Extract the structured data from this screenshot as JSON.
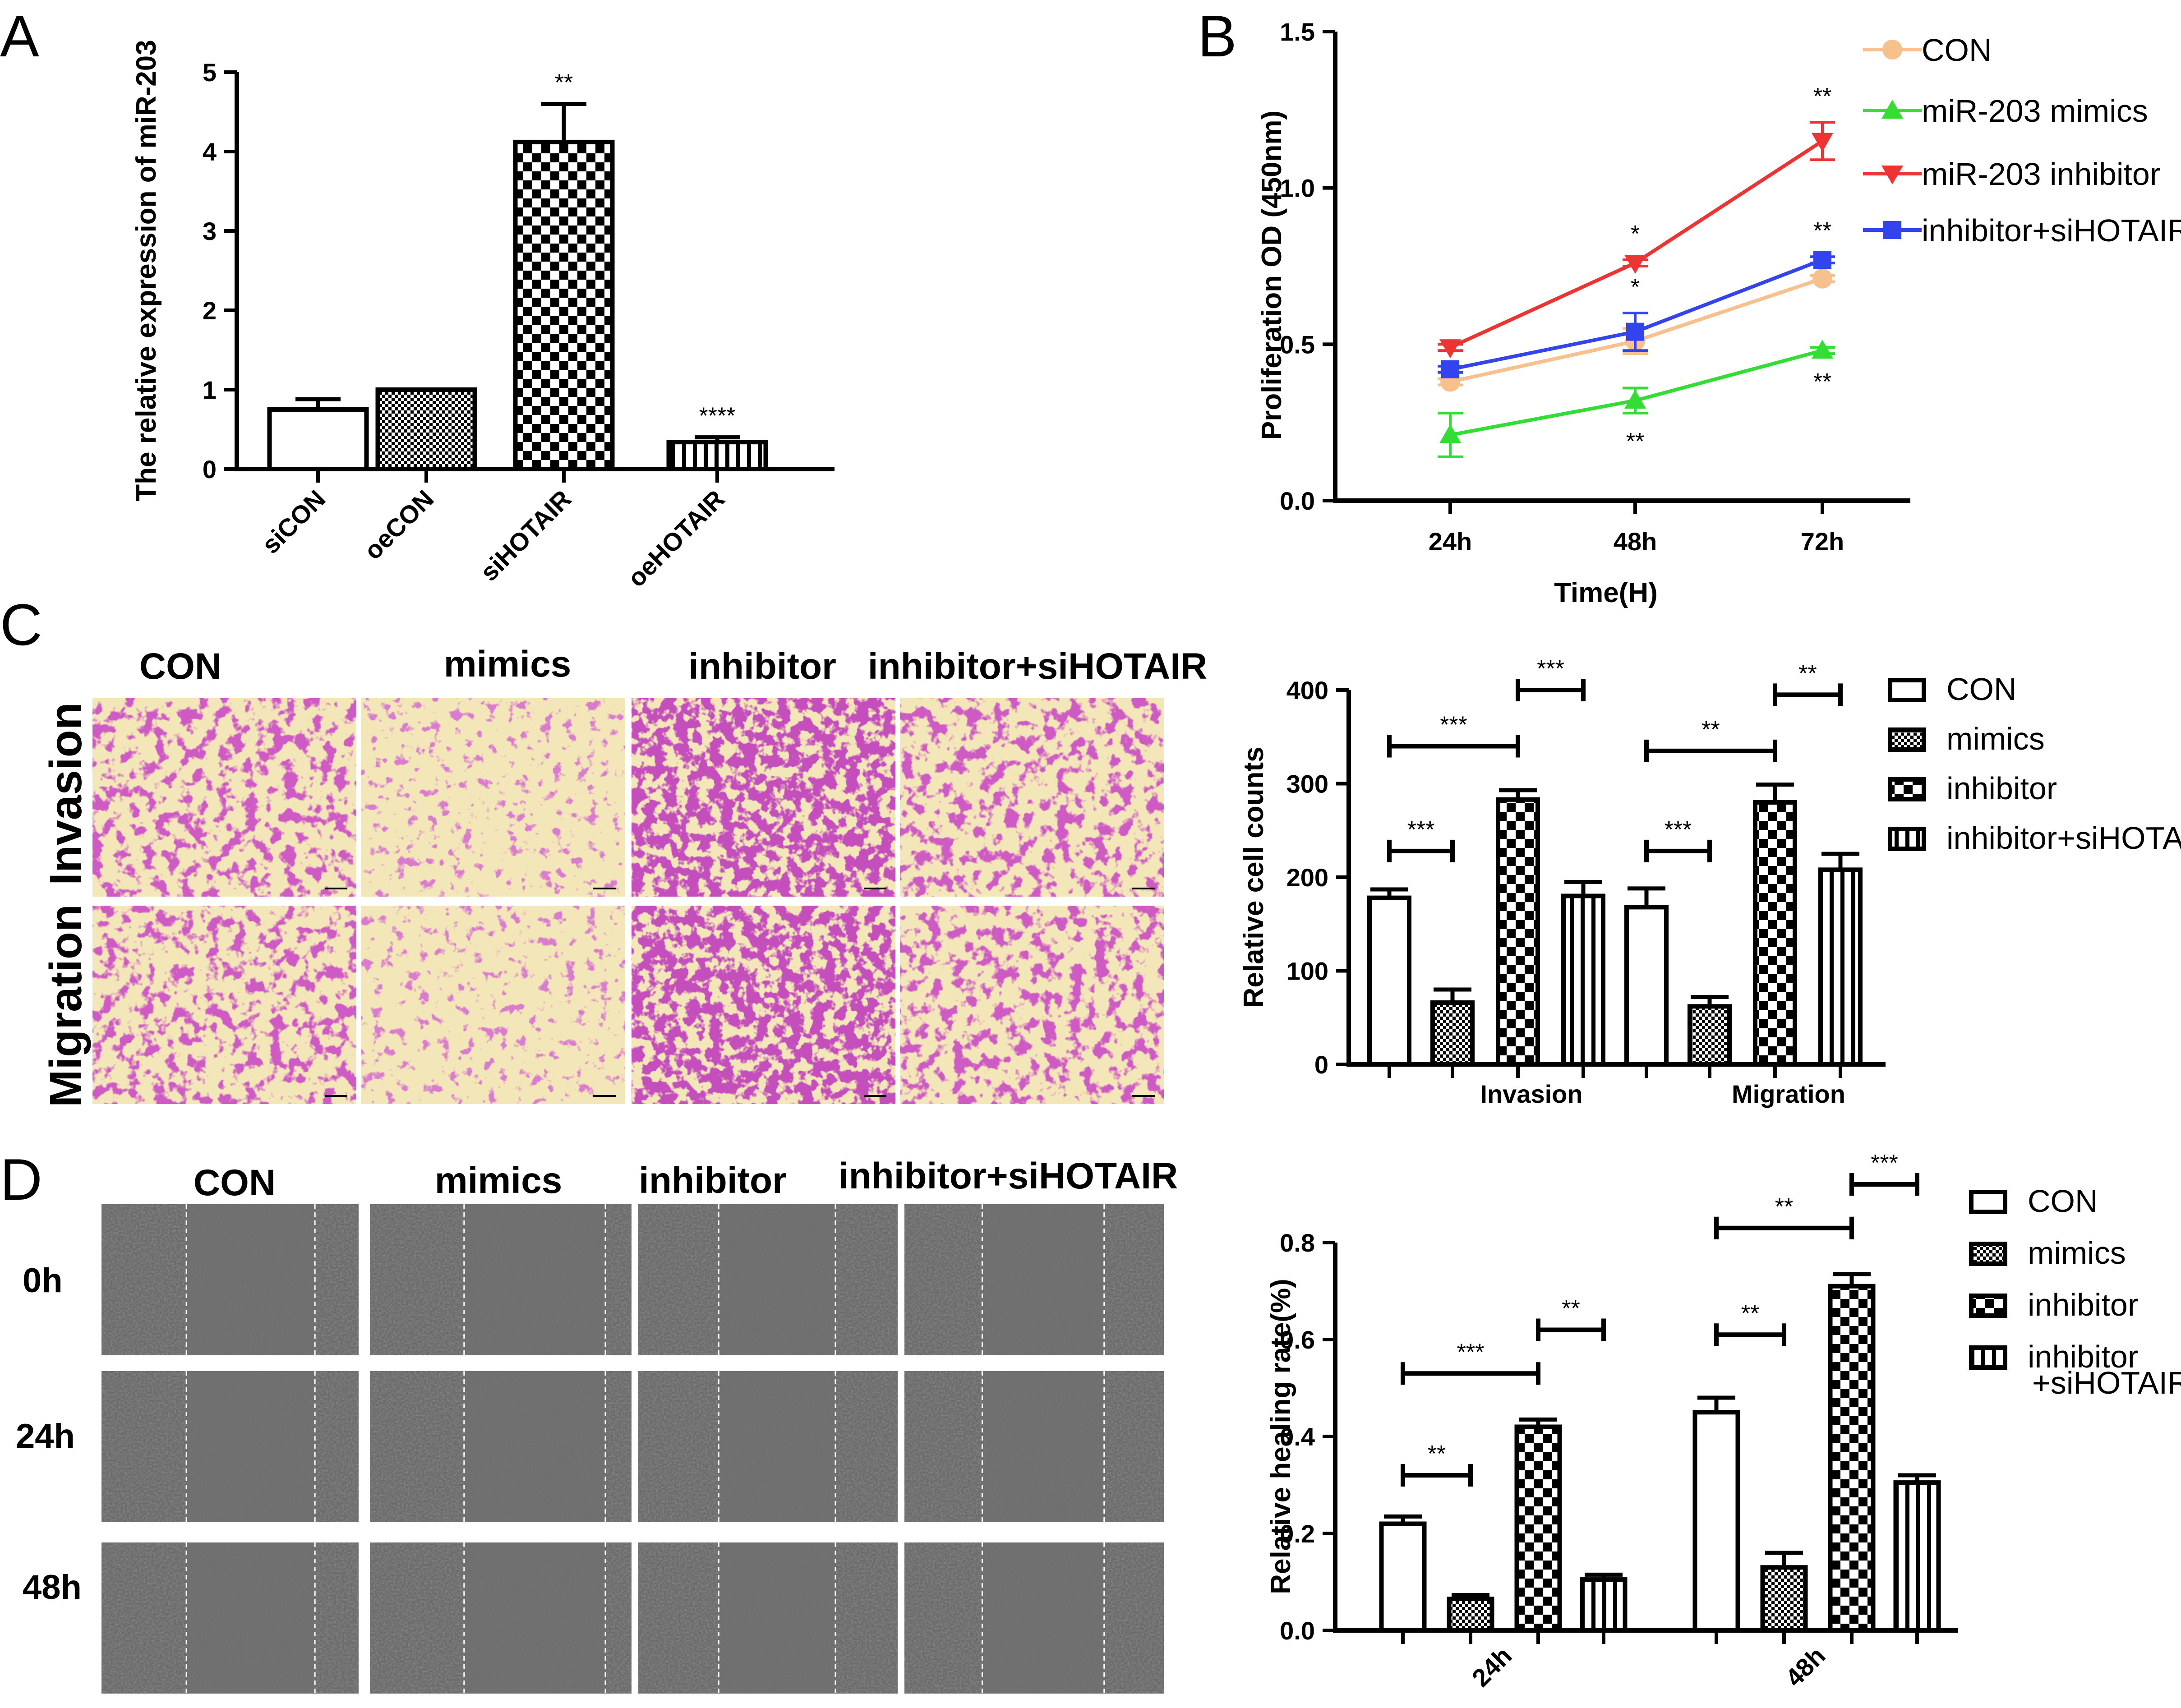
{
  "panel_letters": [
    "A",
    "B",
    "C",
    "D"
  ],
  "panel_c": {
    "col_headers": [
      "CON",
      "mimics",
      "inhibitor",
      "inhibitor+siHOTAIR"
    ],
    "row_labels": [
      "Invasion",
      "Migration"
    ]
  },
  "panel_d": {
    "col_headers": [
      "CON",
      "mimics",
      "inhibitor",
      "inhibitor+siHOTAIR"
    ],
    "row_labels": [
      "0h",
      "24h",
      "48h"
    ]
  },
  "chart_data": [
    {
      "id": "A",
      "type": "bar",
      "ylabel": "The relative expression of miR-203",
      "ylim": [
        0,
        5
      ],
      "yticks": [
        0,
        1,
        2,
        3,
        4,
        5
      ],
      "categories": [
        "siCON",
        "oeCON",
        "siHOTAIR",
        "oeHOTAIR"
      ],
      "values": [
        0.75,
        1.0,
        4.12,
        0.34
      ],
      "errors": [
        0.13,
        0.0,
        0.48,
        0.06
      ],
      "patterns": [
        "open",
        "fine-check",
        "checker",
        "vertical"
      ],
      "significance": [
        "",
        "",
        "**",
        "****"
      ]
    },
    {
      "id": "B",
      "type": "line",
      "xlabel": "Time(H)",
      "ylabel": "Proliferation OD (450nm)",
      "x": [
        "24h",
        "48h",
        "72h"
      ],
      "ylim": [
        0.0,
        1.5
      ],
      "yticks": [
        "0.0",
        "0.5",
        "1.0",
        "1.5"
      ],
      "series": [
        {
          "name": "CON",
          "values": [
            0.38,
            0.51,
            0.71
          ],
          "errors": [
            0.01,
            0.04,
            0.01
          ],
          "color": "#f7c08c",
          "marker": "circle",
          "significance": [
            "",
            "",
            ""
          ]
        },
        {
          "name": "miR-203 mimics",
          "values": [
            0.21,
            0.32,
            0.48
          ],
          "errors": [
            0.07,
            0.04,
            0.01
          ],
          "color": "#33dd33",
          "marker": "triangle-up",
          "significance": [
            "",
            "**",
            "**"
          ]
        },
        {
          "name": "miR-203 inhibitor",
          "values": [
            0.49,
            0.76,
            1.15
          ],
          "errors": [
            0.01,
            0.01,
            0.06
          ],
          "color": "#ee3333",
          "marker": "triangle-down",
          "significance": [
            "",
            "*",
            "**"
          ]
        },
        {
          "name": "inhibitor+siHOTAIR",
          "values": [
            0.42,
            0.54,
            0.77
          ],
          "errors": [
            0.01,
            0.06,
            0.01
          ],
          "color": "#3344ee",
          "marker": "square",
          "significance": [
            "",
            "*",
            "**"
          ]
        }
      ]
    },
    {
      "id": "C",
      "type": "bar",
      "ylabel": "Relative cell counts",
      "ylim": [
        0,
        400
      ],
      "yticks": [
        0,
        100,
        200,
        300,
        400
      ],
      "categories": [
        "Invasion",
        "Migration"
      ],
      "series": [
        {
          "name": "CON",
          "values": [
            178,
            168
          ],
          "errors": [
            9,
            20
          ],
          "pattern": "open"
        },
        {
          "name": "mimics",
          "values": [
            66,
            62
          ],
          "errors": [
            14,
            10
          ],
          "pattern": "fine-check"
        },
        {
          "name": "inhibitor",
          "values": [
            283,
            280
          ],
          "errors": [
            10,
            19
          ],
          "pattern": "checker"
        },
        {
          "name": "inhibitor+siHOTAIR",
          "values": [
            180,
            208
          ],
          "errors": [
            15,
            17
          ],
          "pattern": "vertical"
        }
      ],
      "brackets": [
        {
          "group": 0,
          "from": 0,
          "to": 1,
          "label": "***",
          "y": 228
        },
        {
          "group": 0,
          "from": 0,
          "to": 2,
          "label": "***",
          "y": 340
        },
        {
          "group": 0,
          "from": 2,
          "to": 3,
          "label": "***",
          "y": 400
        },
        {
          "group": 1,
          "from": 0,
          "to": 1,
          "label": "***",
          "y": 228
        },
        {
          "group": 1,
          "from": 0,
          "to": 2,
          "label": "**",
          "y": 335
        },
        {
          "group": 1,
          "from": 2,
          "to": 3,
          "label": "**",
          "y": 395
        }
      ]
    },
    {
      "id": "D",
      "type": "bar",
      "ylabel": "Relative healing rate(%)",
      "ylim": [
        0.0,
        0.8
      ],
      "yticks": [
        "0.0",
        "0.2",
        "0.4",
        "0.6",
        "0.8"
      ],
      "categories": [
        "24h",
        "48h"
      ],
      "series": [
        {
          "name": "CON",
          "values": [
            0.22,
            0.45
          ],
          "errors": [
            0.015,
            0.03
          ],
          "pattern": "open"
        },
        {
          "name": "mimics",
          "values": [
            0.065,
            0.13
          ],
          "errors": [
            0.008,
            0.03
          ],
          "pattern": "fine-check"
        },
        {
          "name": "inhibitor",
          "values": [
            0.42,
            0.71
          ],
          "errors": [
            0.015,
            0.025
          ],
          "pattern": "checker"
        },
        {
          "name": "inhibitor\n+siHOTAIR",
          "values": [
            0.105,
            0.305
          ],
          "errors": [
            0.01,
            0.015
          ],
          "pattern": "vertical"
        }
      ],
      "brackets": [
        {
          "group": 0,
          "from": 0,
          "to": 1,
          "label": "**",
          "y": 0.32
        },
        {
          "group": 0,
          "from": 0,
          "to": 2,
          "label": "***",
          "y": 0.53
        },
        {
          "group": 0,
          "from": 2,
          "to": 3,
          "label": "**",
          "y": 0.62
        },
        {
          "group": 1,
          "from": 0,
          "to": 1,
          "label": "**",
          "y": 0.61
        },
        {
          "group": 1,
          "from": 0,
          "to": 2,
          "label": "**",
          "y": 0.83
        },
        {
          "group": 1,
          "from": 2,
          "to": 3,
          "label": "***",
          "y": 0.92
        }
      ]
    }
  ]
}
